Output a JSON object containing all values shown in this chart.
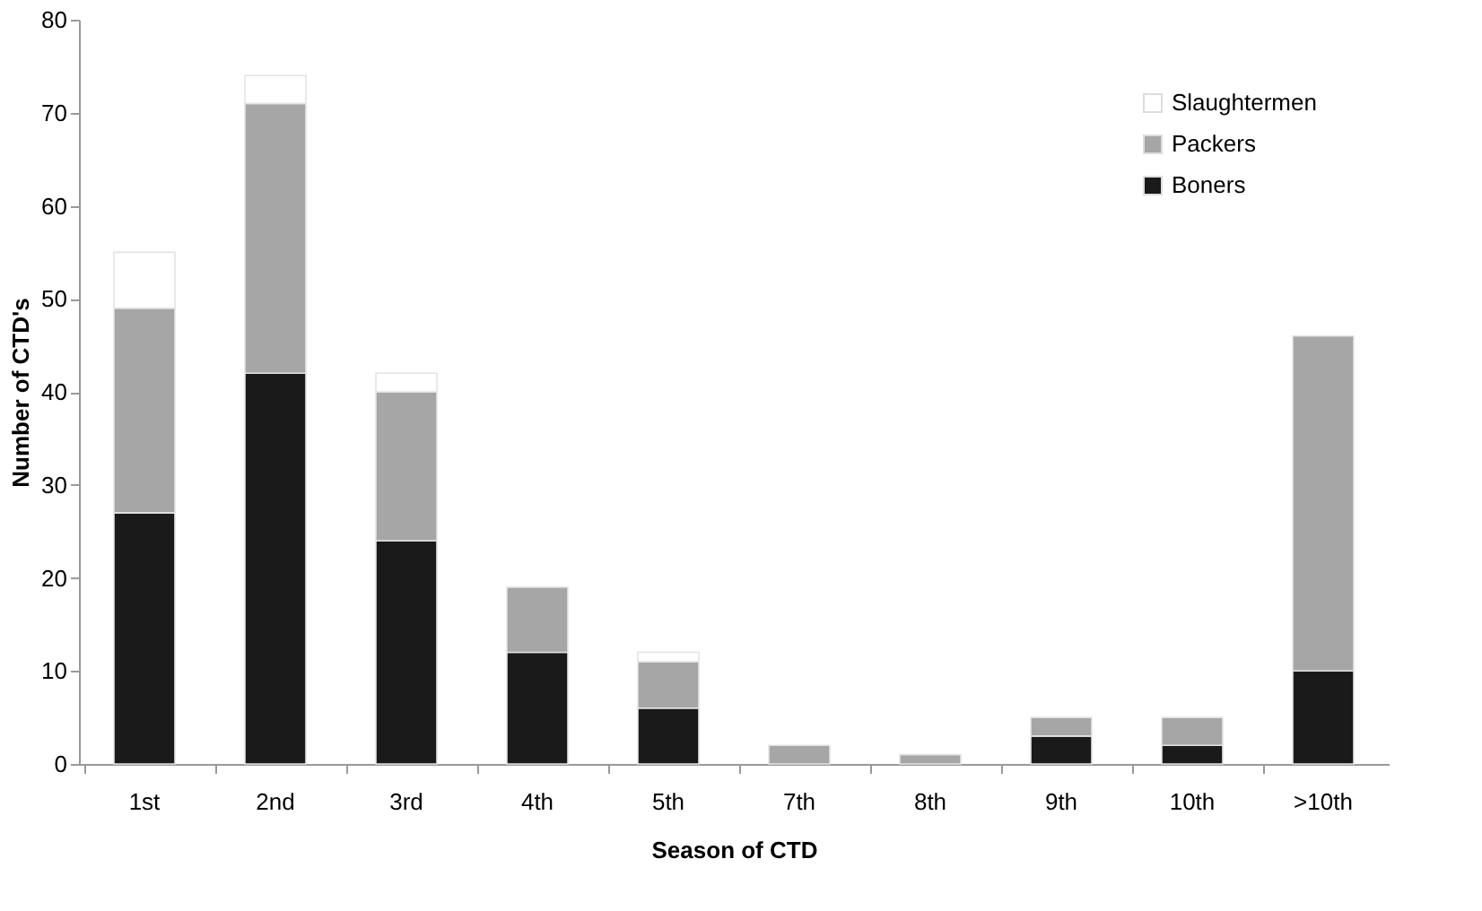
{
  "chart_data": {
    "type": "bar",
    "stacked": true,
    "xlabel": "Season of CTD",
    "ylabel": "Number of CTD's",
    "categories": [
      "1st",
      "2nd",
      "3rd",
      "4th",
      "5th",
      "7th",
      "8th",
      "9th",
      "10th",
      ">10th"
    ],
    "series": [
      {
        "name": "Boners",
        "color": "#1a1a1a",
        "values": [
          27,
          42,
          24,
          12,
          6,
          0,
          0,
          3,
          2,
          10
        ]
      },
      {
        "name": "Packers",
        "color": "#a6a6a6",
        "values": [
          22,
          29,
          16,
          7,
          5,
          2,
          1,
          2,
          3,
          36
        ]
      },
      {
        "name": "Slaughtermen",
        "color": "#ffffff",
        "values": [
          6,
          3,
          2,
          0,
          1,
          0,
          0,
          0,
          0,
          0
        ]
      }
    ],
    "ylim": [
      0,
      80
    ],
    "yticks": [
      0,
      10,
      20,
      30,
      40,
      50,
      60,
      70,
      80
    ],
    "grid": false,
    "legend": "top right"
  }
}
